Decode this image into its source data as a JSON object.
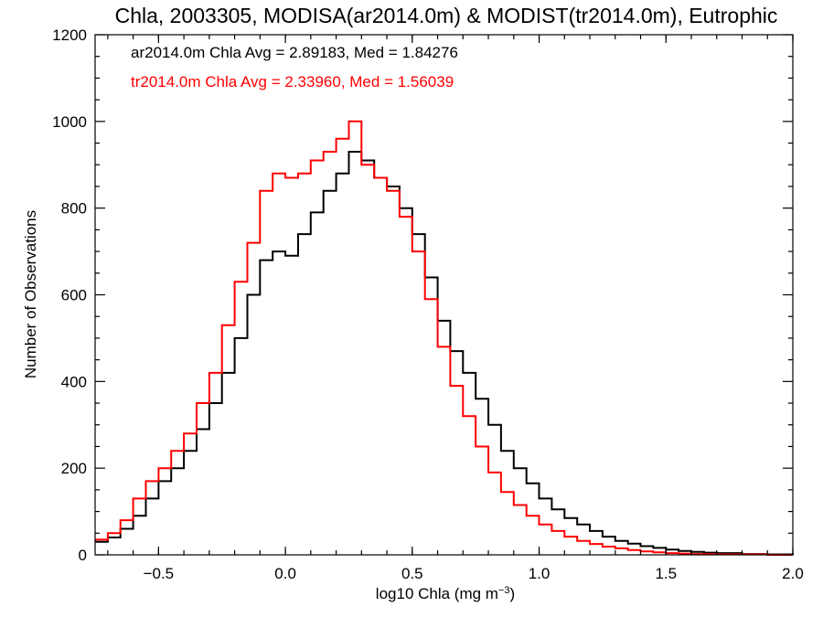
{
  "chart_data": {
    "type": "line",
    "title": "Chla, 2003305, MODISA(ar2014.0m) & MODIST(tr2014.0m), Eutrophic",
    "xlabel_main": "log10 Chla (mg m",
    "xlabel_sup": "−3",
    "xlabel_close": ")",
    "ylabel": "Number of Observations",
    "xlim": [
      -0.75,
      2.0
    ],
    "ylim": [
      0,
      1200
    ],
    "xticks": [
      -0.5,
      0.0,
      0.5,
      1.0,
      1.5,
      2.0
    ],
    "xtick_labels": [
      "−0.5",
      "0.0",
      "0.5",
      "1.0",
      "1.5",
      "2.0"
    ],
    "yticks": [
      0,
      200,
      400,
      600,
      800,
      1000,
      1200
    ],
    "ytick_labels": [
      "0",
      "200",
      "400",
      "600",
      "800",
      "1000",
      "1200"
    ],
    "grid": false,
    "annotations": [
      {
        "text": "ar2014.0m Chla Avg = 2.89183, Med = 1.84276",
        "color": "#000000"
      },
      {
        "text": "tr2014.0m Chla Avg = 2.33960, Med = 1.56039",
        "color": "#ff0000"
      }
    ],
    "series": [
      {
        "color": "#000000",
        "x": [
          -0.75,
          -0.7,
          -0.65,
          -0.6,
          -0.55,
          -0.5,
          -0.45,
          -0.4,
          -0.35,
          -0.3,
          -0.25,
          -0.2,
          -0.15,
          -0.1,
          -0.05,
          0.0,
          0.05,
          0.1,
          0.15,
          0.2,
          0.25,
          0.3,
          0.35,
          0.4,
          0.45,
          0.5,
          0.55,
          0.6,
          0.65,
          0.7,
          0.75,
          0.8,
          0.85,
          0.9,
          0.95,
          1.0,
          1.05,
          1.1,
          1.15,
          1.2,
          1.25,
          1.3,
          1.35,
          1.4,
          1.45,
          1.5,
          1.55,
          1.6,
          1.65,
          1.7,
          1.8,
          1.9,
          2.0
        ],
        "values": [
          30,
          40,
          60,
          90,
          130,
          170,
          200,
          240,
          290,
          350,
          420,
          500,
          600,
          680,
          700,
          690,
          740,
          790,
          840,
          880,
          930,
          910,
          870,
          850,
          800,
          740,
          640,
          540,
          470,
          420,
          360,
          300,
          240,
          200,
          165,
          130,
          105,
          85,
          70,
          55,
          42,
          32,
          26,
          20,
          16,
          12,
          9,
          7,
          5,
          4,
          2,
          1,
          0
        ]
      },
      {
        "color": "#ff0000",
        "x": [
          -0.75,
          -0.7,
          -0.65,
          -0.6,
          -0.55,
          -0.5,
          -0.45,
          -0.4,
          -0.35,
          -0.3,
          -0.25,
          -0.2,
          -0.15,
          -0.1,
          -0.05,
          0.0,
          0.05,
          0.1,
          0.15,
          0.2,
          0.25,
          0.3,
          0.35,
          0.4,
          0.45,
          0.5,
          0.55,
          0.6,
          0.65,
          0.7,
          0.75,
          0.8,
          0.85,
          0.9,
          0.95,
          1.0,
          1.05,
          1.1,
          1.15,
          1.2,
          1.25,
          1.3,
          1.35,
          1.4,
          1.45,
          1.5,
          1.55,
          1.6,
          1.7,
          1.8,
          1.9,
          2.0
        ],
        "values": [
          35,
          50,
          80,
          130,
          170,
          200,
          240,
          280,
          350,
          420,
          530,
          630,
          720,
          840,
          880,
          870,
          880,
          910,
          930,
          960,
          1000,
          900,
          870,
          840,
          780,
          700,
          590,
          480,
          390,
          320,
          250,
          190,
          145,
          115,
          90,
          70,
          55,
          42,
          32,
          25,
          19,
          15,
          11,
          8,
          6,
          4,
          3,
          2,
          1,
          1,
          0,
          0
        ]
      }
    ]
  }
}
